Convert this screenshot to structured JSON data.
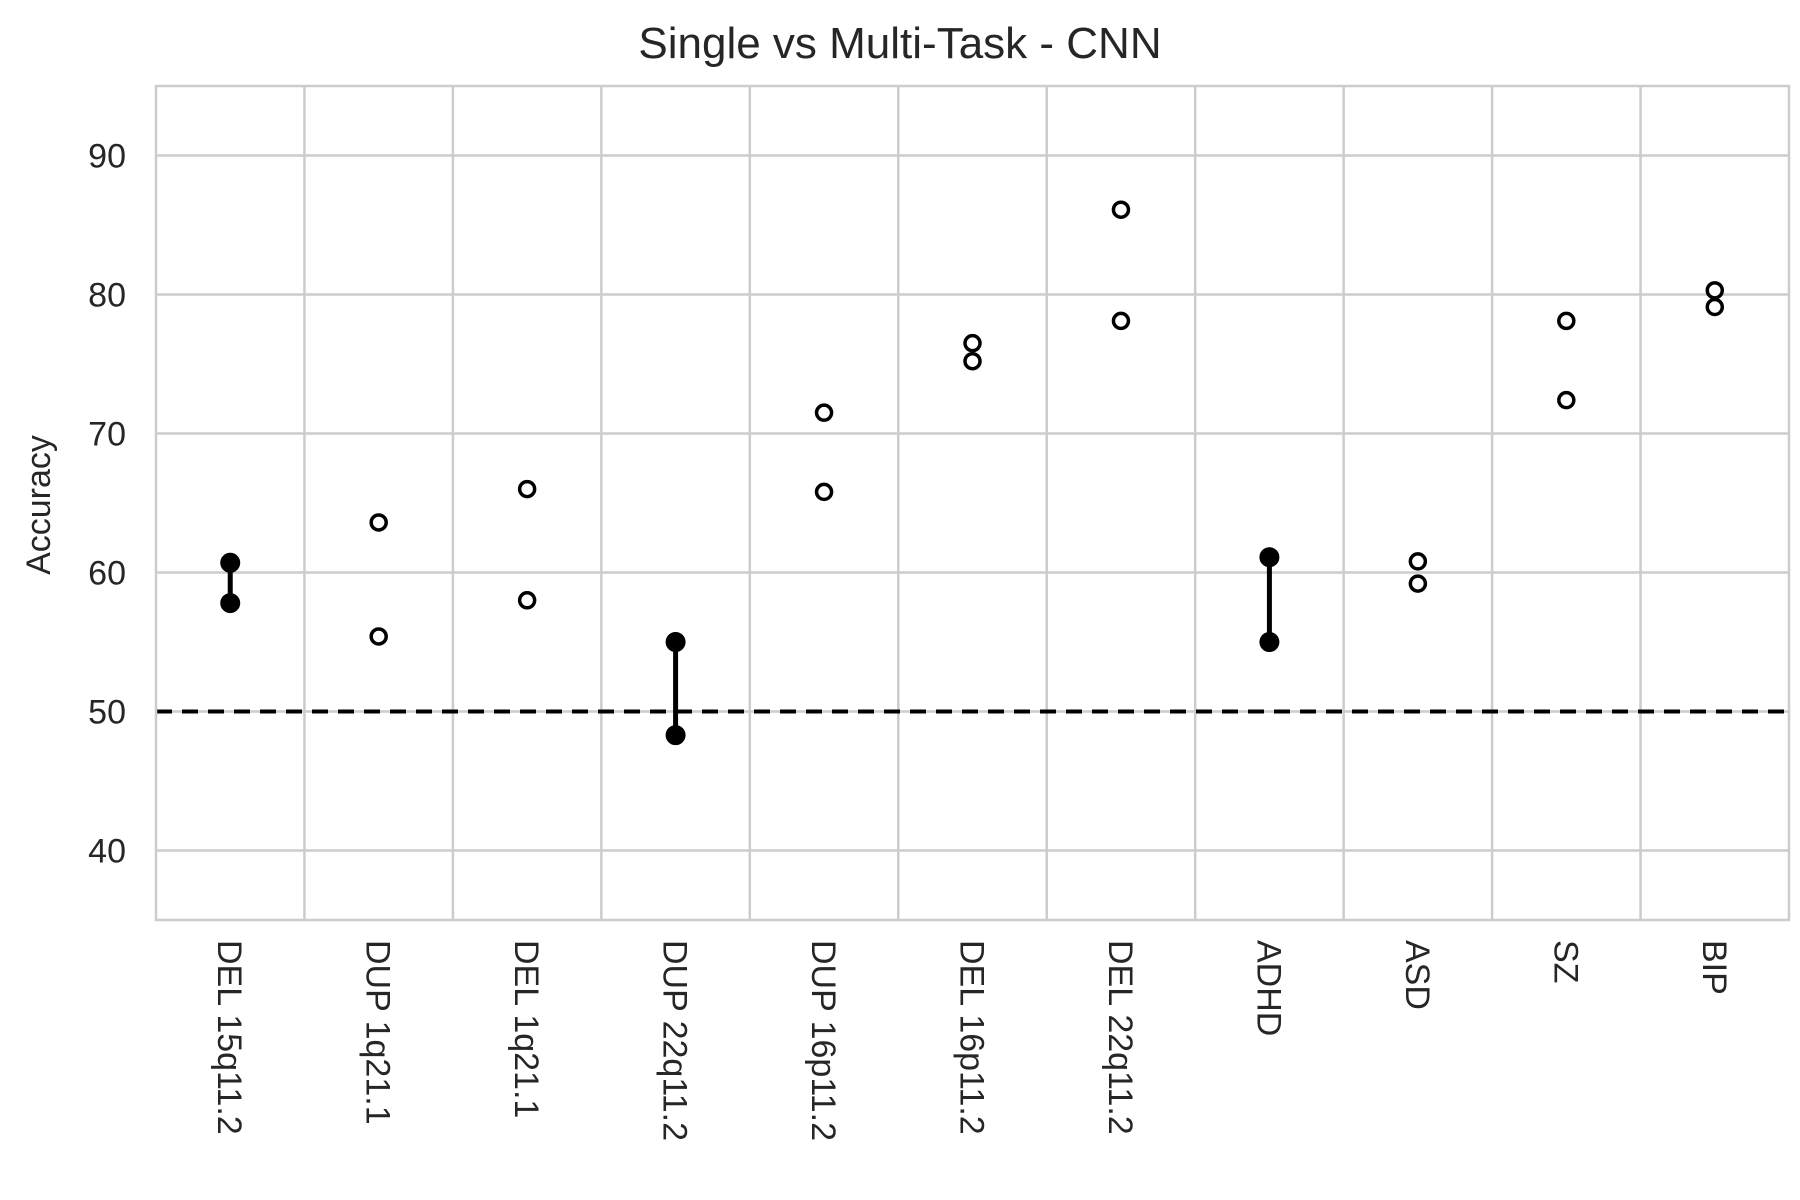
{
  "chart_data": {
    "type": "scatter",
    "title": "Single vs Multi-Task - CNN",
    "xlabel": "",
    "ylabel": "Accuracy",
    "ylim": [
      35,
      95
    ],
    "yticks": [
      "40",
      "50",
      "60",
      "70",
      "80",
      "90"
    ],
    "grid": true,
    "baseline": 50,
    "categories": [
      "DEL 15q11.2",
      "DUP 1q21.1",
      "DEL 1q21.1",
      "DUP 22q11.2",
      "DUP 16p11.2",
      "DEL 16p11.2",
      "DEL 22q11.2",
      "ADHD",
      "ASD",
      "SZ",
      "BIP"
    ],
    "pairs": [
      {
        "values": [
          60.7,
          57.8
        ],
        "filled": true
      },
      {
        "values": [
          63.6,
          55.4
        ],
        "filled": false
      },
      {
        "values": [
          66.0,
          58.0
        ],
        "filled": false
      },
      {
        "values": [
          55.0,
          48.3
        ],
        "filled": true
      },
      {
        "values": [
          71.5,
          65.8
        ],
        "filled": false
      },
      {
        "values": [
          76.5,
          75.2
        ],
        "filled": false
      },
      {
        "values": [
          86.1,
          78.1
        ],
        "filled": false
      },
      {
        "values": [
          61.1,
          55.0
        ],
        "filled": true
      },
      {
        "values": [
          60.8,
          59.2
        ],
        "filled": false
      },
      {
        "values": [
          78.1,
          72.4
        ],
        "filled": false
      },
      {
        "values": [
          80.3,
          79.1
        ],
        "filled": false
      }
    ],
    "colors": {
      "marker": "#000000",
      "grid": "#cccccc",
      "text": "#262626"
    }
  }
}
